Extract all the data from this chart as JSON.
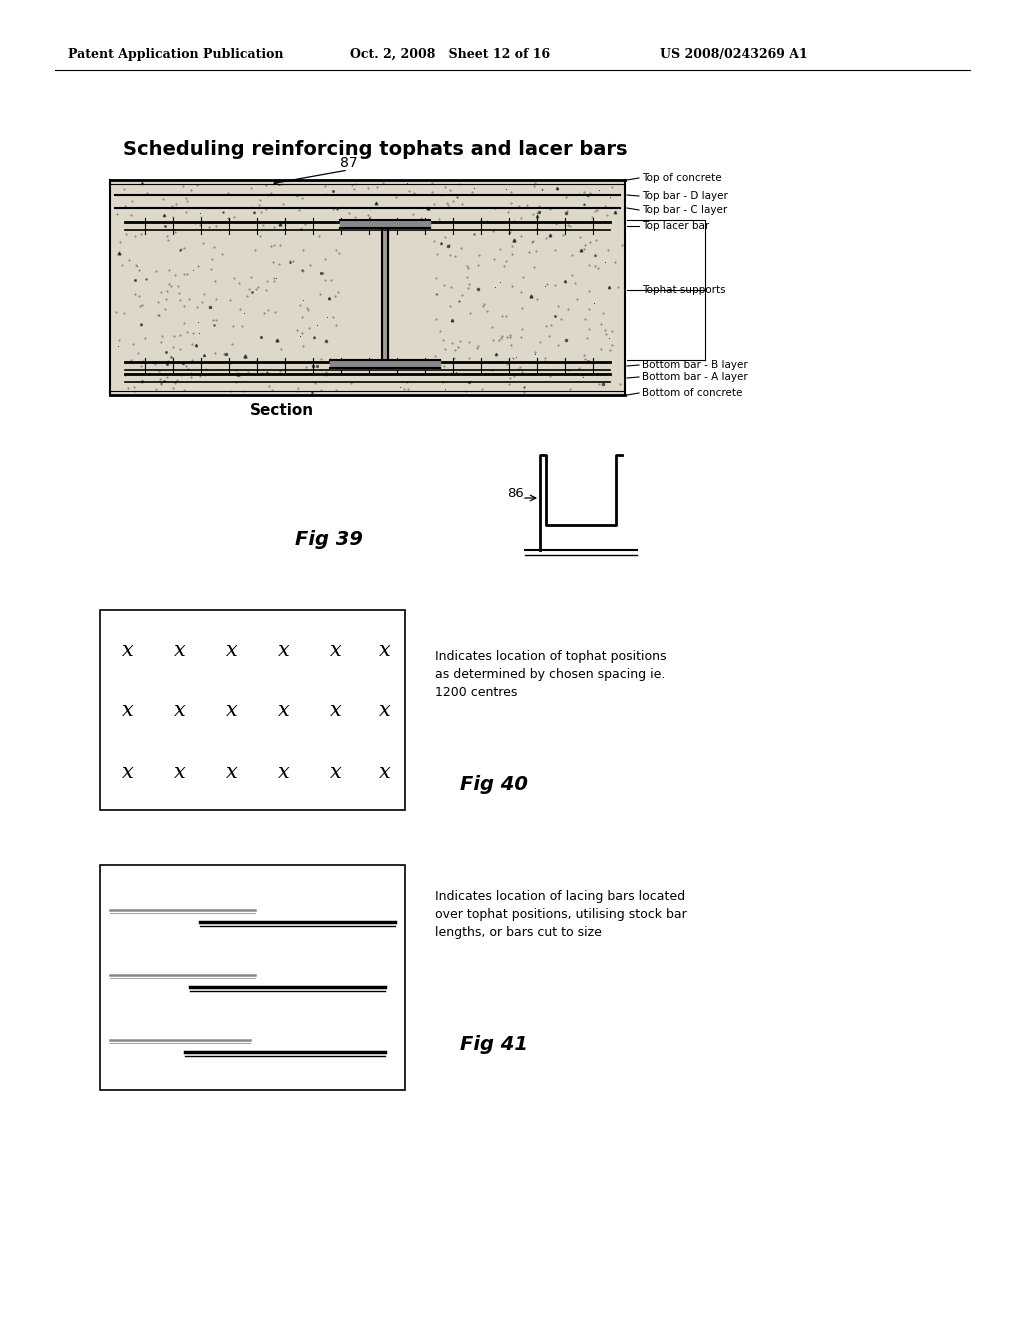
{
  "header_left": "Patent Application Publication",
  "header_mid": "Oct. 2, 2008   Sheet 12 of 16",
  "header_right": "US 2008/0243269 A1",
  "main_title": "Scheduling reinforcing tophats and lacer bars",
  "fig39_label": "Fig 39",
  "fig40_label": "Fig 40",
  "fig41_label": "Fig 41",
  "section_label": "Section",
  "label_87": "87",
  "label_86": "86",
  "layer_labels": [
    "Top of concrete",
    "Top bar - D layer",
    "Top bar - C layer",
    "Top lacer bar",
    "Tophat supports",
    "Bottom bar - B layer",
    "Bottom bar - A layer",
    "Bottom of concrete"
  ],
  "fig40_text": "Indicates location of tophat positions\nas determined by chosen spacing ie.\n1200 centres",
  "fig41_text": "Indicates location of lacing bars located\nover tophat positions, utilising stock bar\nlengths, or bars cut to size",
  "bg_color": "#ffffff",
  "line_color": "#000000"
}
